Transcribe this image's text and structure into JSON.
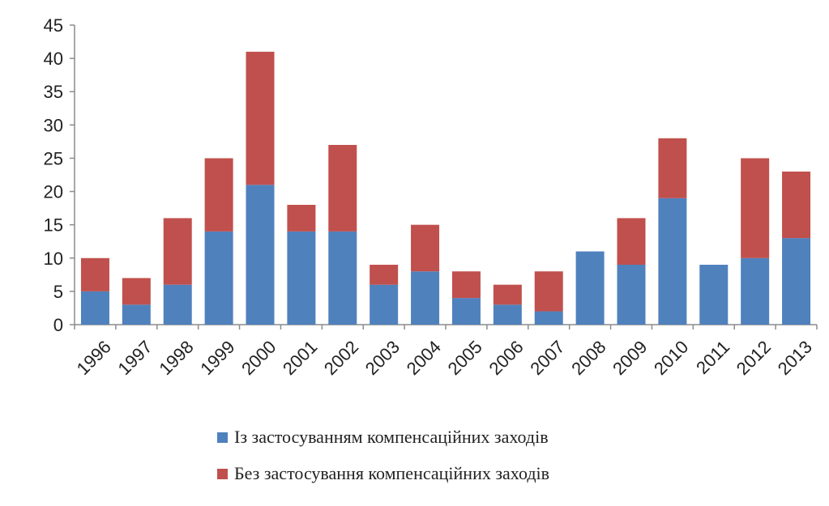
{
  "chart_data": {
    "type": "bar",
    "stacked": true,
    "categories": [
      "1996",
      "1997",
      "1998",
      "1999",
      "2000",
      "2001",
      "2002",
      "2003",
      "2004",
      "2005",
      "2006",
      "2007",
      "2008",
      "2009",
      "2010",
      "2011",
      "2012",
      "2013"
    ],
    "series": [
      {
        "name": "Із застосуванням компенсаційних заходів",
        "color": "#4f81bd",
        "values": [
          5,
          3,
          6,
          14,
          21,
          14,
          14,
          6,
          8,
          4,
          3,
          2,
          11,
          9,
          19,
          9,
          10,
          13
        ]
      },
      {
        "name": "Без застосування компенсаційних заходів",
        "color": "#c0504d",
        "values": [
          5,
          4,
          10,
          11,
          20,
          4,
          13,
          3,
          7,
          4,
          3,
          6,
          0,
          7,
          9,
          0,
          15,
          10
        ]
      }
    ],
    "ylim": [
      0,
      45
    ],
    "yticks": [
      "0",
      "5",
      "10",
      "15",
      "20",
      "25",
      "30",
      "35",
      "40",
      "45"
    ],
    "grid": false,
    "legend_position": "bottom"
  }
}
